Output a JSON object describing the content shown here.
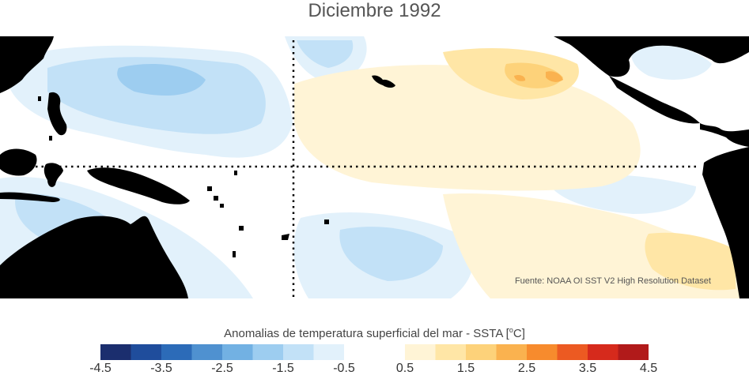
{
  "title": "Diciembre 1992",
  "source": "Fuente: NOAA OI SST V2 High Resolution Dataset",
  "colorbar": {
    "label_main": "Anomalias de temperatura superficial del mar - SSTA  [",
    "label_degree": "o",
    "label_unit": "C]",
    "min": -4.5,
    "max": 4.5,
    "tick_labels": [
      "-4.5",
      "-3.5",
      "-2.5",
      "-1.5",
      "-0.5",
      "0.5",
      "1.5",
      "2.5",
      "3.5",
      "4.5"
    ],
    "colors": [
      "#1b2e6e",
      "#1f4d9c",
      "#2c6bb8",
      "#4f91d0",
      "#72b1e3",
      "#9dcdf0",
      "#c2e1f7",
      "#e2f1fb",
      "#ffffff",
      "#ffffff",
      "#fff4d6",
      "#ffe6a6",
      "#fdd27a",
      "#fab24f",
      "#f78b2d",
      "#ec5a22",
      "#d62a1c",
      "#b11a1a"
    ]
  },
  "map_colors": {
    "land": "#000000",
    "ocean": "#ffffff",
    "cool_light": "#e2f1fb",
    "cool": "#c2e1f7",
    "cool_mid": "#9dcdf0",
    "warm_light": "#fff4d6",
    "warm": "#ffe6a6",
    "warm_mid": "#fdd27a",
    "warm_strong": "#fab24f",
    "guide_line": "#000000"
  }
}
